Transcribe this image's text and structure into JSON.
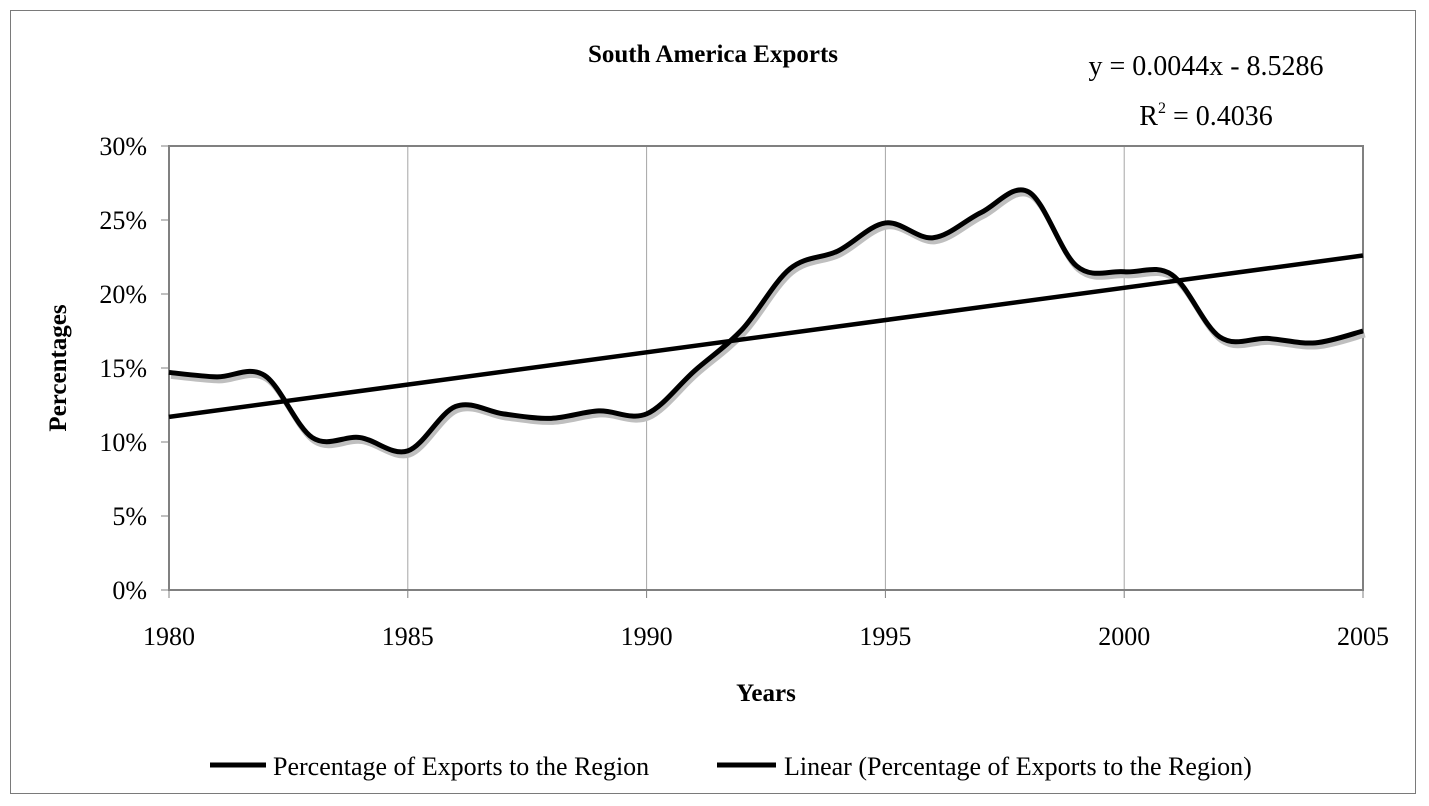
{
  "chart_data": {
    "type": "line",
    "title": "South America Exports",
    "xlabel": "Years",
    "ylabel": "Percentages",
    "xlim": [
      1980,
      2005
    ],
    "ylim": [
      0,
      30
    ],
    "x_ticks": [
      1980,
      1985,
      1990,
      1995,
      2000,
      2005
    ],
    "x_tick_labels": [
      "1980",
      "1985",
      "1990",
      "1995",
      "2000",
      "2005"
    ],
    "y_ticks": [
      0,
      5,
      10,
      15,
      20,
      25,
      30
    ],
    "y_tick_labels": [
      "0%",
      "5%",
      "10%",
      "15%",
      "20%",
      "25%",
      "30%"
    ],
    "grid": "vertical",
    "legend_position": "bottom",
    "trendline_equation": "y = 0.0044x - 8.5286",
    "trendline_r2_prefix": "R",
    "trendline_r2_exponent": "2",
    "trendline_r2_value": " = 0.4036",
    "x": [
      1980,
      1981,
      1982,
      1983,
      1984,
      1985,
      1986,
      1987,
      1988,
      1989,
      1990,
      1991,
      1992,
      1993,
      1994,
      1995,
      1996,
      1997,
      1998,
      1999,
      2000,
      2001,
      2002,
      2003,
      2004,
      2005
    ],
    "series": [
      {
        "name": "Percentage of Exports to the Region",
        "style": "smoothed",
        "color": "#000000",
        "shadow_color": "#bfbfbf",
        "values": [
          14.7,
          14.4,
          14.5,
          10.3,
          10.3,
          9.4,
          12.4,
          11.9,
          11.6,
          12.1,
          11.9,
          14.8,
          17.6,
          21.7,
          22.9,
          24.8,
          23.8,
          25.5,
          26.9,
          21.9,
          21.5,
          21.3,
          17.1,
          17.0,
          16.7,
          17.5
        ]
      },
      {
        "name": "Linear (Percentage of Exports to the Region)",
        "style": "linear",
        "color": "#000000",
        "endpoints": [
          [
            1980,
            11.7
          ],
          [
            2005,
            22.6
          ]
        ]
      }
    ]
  }
}
